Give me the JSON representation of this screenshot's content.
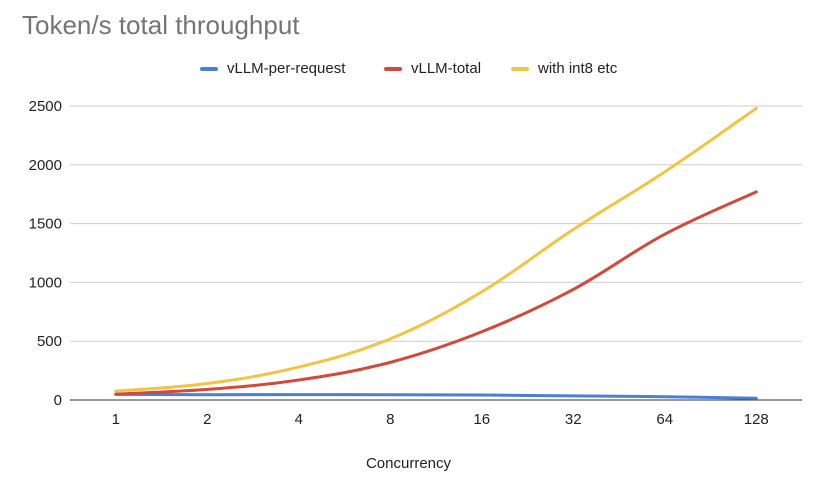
{
  "chart_data": {
    "type": "line",
    "title": "Token/s total throughput",
    "xlabel": "Concurrency",
    "ylabel": "",
    "categories": [
      "1",
      "2",
      "4",
      "8",
      "16",
      "32",
      "64",
      "128"
    ],
    "ylim": [
      0,
      2500
    ],
    "yticks": [
      "0",
      "500",
      "1000",
      "1500",
      "2000",
      "2500"
    ],
    "grid": true,
    "legend_position": "top",
    "series": [
      {
        "name": "vLLM-per-request",
        "color": "#4a7fd6",
        "values": [
          48,
          45,
          46,
          45,
          42,
          35,
          28,
          15
        ]
      },
      {
        "name": "vLLM-total",
        "color": "#d14a3c",
        "values": [
          50,
          90,
          170,
          320,
          580,
          940,
          1410,
          1770
        ]
      },
      {
        "name": "with int8 etc",
        "color": "#f2c443",
        "values": [
          75,
          140,
          280,
          520,
          920,
          1450,
          1940,
          2480
        ]
      }
    ]
  }
}
